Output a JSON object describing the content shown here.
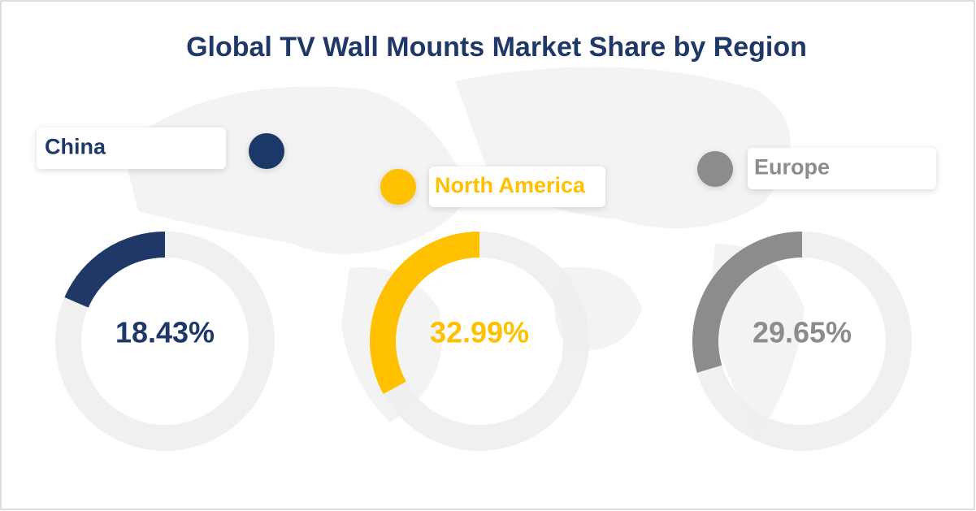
{
  "title": "Global  TV Wall Mounts Market Share by Region",
  "chart_data": [
    {
      "type": "donut",
      "categories": [
        "China"
      ],
      "values": [
        18.43
      ],
      "value_labels": [
        "18.43%"
      ],
      "color": "#1f3868"
    },
    {
      "type": "donut",
      "categories": [
        "North America"
      ],
      "values": [
        32.99
      ],
      "value_labels": [
        "32.99%"
      ],
      "color": "#ffc000"
    },
    {
      "type": "donut",
      "categories": [
        "Europe"
      ],
      "values": [
        29.65
      ],
      "value_labels": [
        "29.65%"
      ],
      "color": "#8c8c8c"
    }
  ]
}
